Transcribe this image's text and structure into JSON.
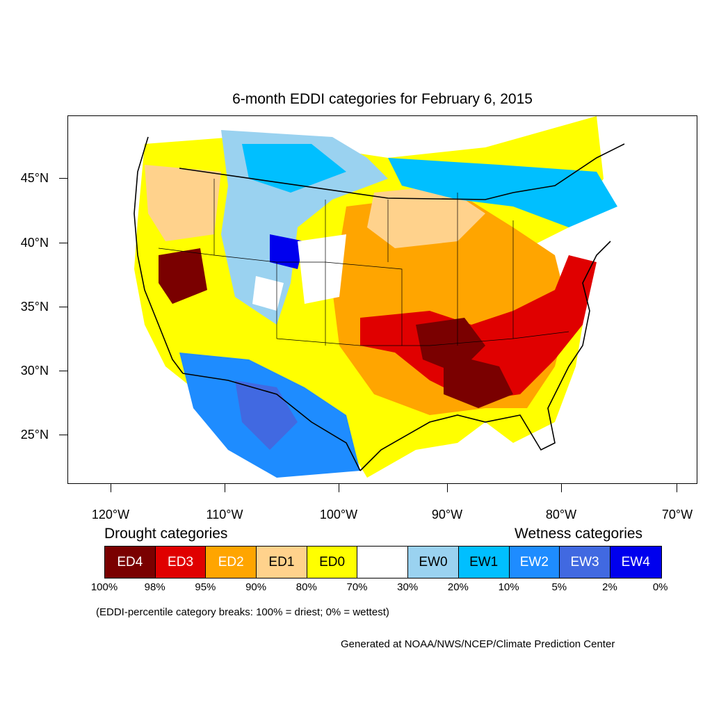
{
  "title": "6-month EDDI categories for February 6, 2015",
  "lat_labels": [
    "45°N",
    "40°N",
    "35°N",
    "30°N",
    "25°N"
  ],
  "lon_labels": [
    "120°W",
    "110°W",
    "100°W",
    "90°W",
    "80°W",
    "70°W"
  ],
  "drought_heading": "Drought categories",
  "wetness_heading": "Wetness categories",
  "categories": [
    {
      "label": "ED4",
      "color": "#7a0000",
      "text_color": "#ffffff"
    },
    {
      "label": "ED3",
      "color": "#e00000",
      "text_color": "#ffffff"
    },
    {
      "label": "ED2",
      "color": "#ffa500",
      "text_color": "#ffffff"
    },
    {
      "label": "ED1",
      "color": "#ffd28c",
      "text_color": "#000000"
    },
    {
      "label": "ED0",
      "color": "#ffff00",
      "text_color": "#000000"
    },
    {
      "label": "",
      "color": "#ffffff",
      "text_color": "#000000"
    },
    {
      "label": "EW0",
      "color": "#9ad2f0",
      "text_color": "#000000"
    },
    {
      "label": "EW1",
      "color": "#00bfff",
      "text_color": "#000000"
    },
    {
      "label": "EW2",
      "color": "#1e8cff",
      "text_color": "#ffffff"
    },
    {
      "label": "EW3",
      "color": "#4169e1",
      "text_color": "#ffffff"
    },
    {
      "label": "EW4",
      "color": "#0000ee",
      "text_color": "#ffffff"
    }
  ],
  "percent_breaks": [
    "100%",
    "98%",
    "95%",
    "90%",
    "80%",
    "70%",
    "30%",
    "20%",
    "10%",
    "5%",
    "2%",
    "0%"
  ],
  "note": "(EDDI-percentile category breaks: 100% = driest; 0% = wettest)",
  "credit": "Generated at NOAA/NWS/NCEP/Climate Prediction Center"
}
